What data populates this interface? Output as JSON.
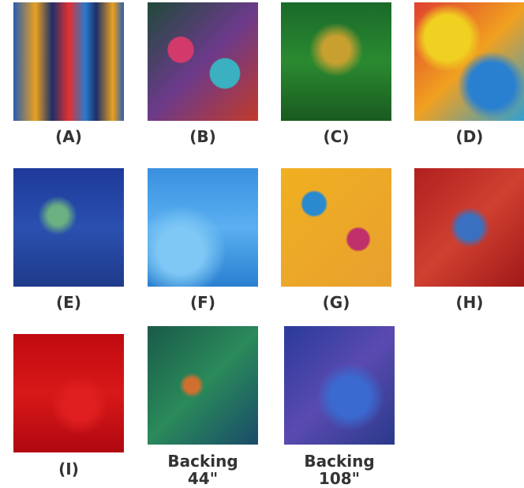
{
  "swatches": [
    {
      "label": "(A)"
    },
    {
      "label": "(B)"
    },
    {
      "label": "(C)"
    },
    {
      "label": "(D)"
    },
    {
      "label": "(E)"
    },
    {
      "label": "(F)"
    },
    {
      "label": "(G)"
    },
    {
      "label": "(H)"
    },
    {
      "label": "(I)"
    },
    {
      "label": "Backing\n44\""
    },
    {
      "label": "Backing\n108\""
    }
  ]
}
